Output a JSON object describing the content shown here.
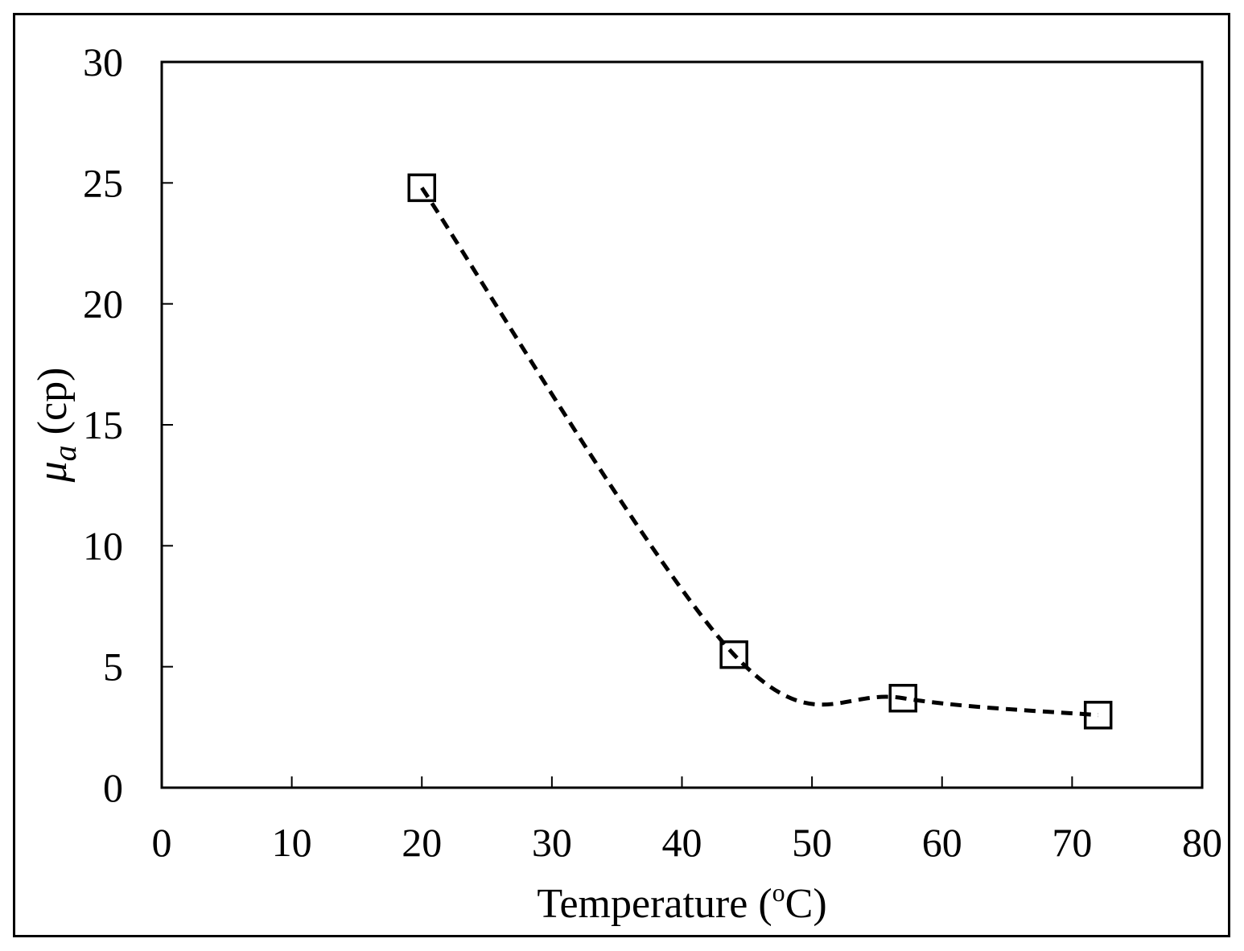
{
  "chart_data": {
    "type": "line",
    "title": "",
    "xlabel": "Temperature (",
    "xlabel_superscript": "o",
    "xlabel_suffix": "C)",
    "ylabel_symbol": "μ",
    "ylabel_subscript": "a",
    "ylabel_suffix": " (cp)",
    "xlim": [
      0,
      80
    ],
    "ylim": [
      0,
      30
    ],
    "x_ticks": [
      0,
      10,
      20,
      30,
      40,
      50,
      60,
      70,
      80
    ],
    "y_ticks": [
      0,
      5,
      10,
      15,
      20,
      25,
      30
    ],
    "grid": false,
    "legend": "none",
    "series": [
      {
        "marker": "open-square",
        "line_style": "dashed",
        "line_color": "#000000",
        "x": [
          20,
          44,
          57,
          72
        ],
        "y": [
          24.8,
          5.5,
          3.7,
          3.0
        ]
      }
    ]
  }
}
